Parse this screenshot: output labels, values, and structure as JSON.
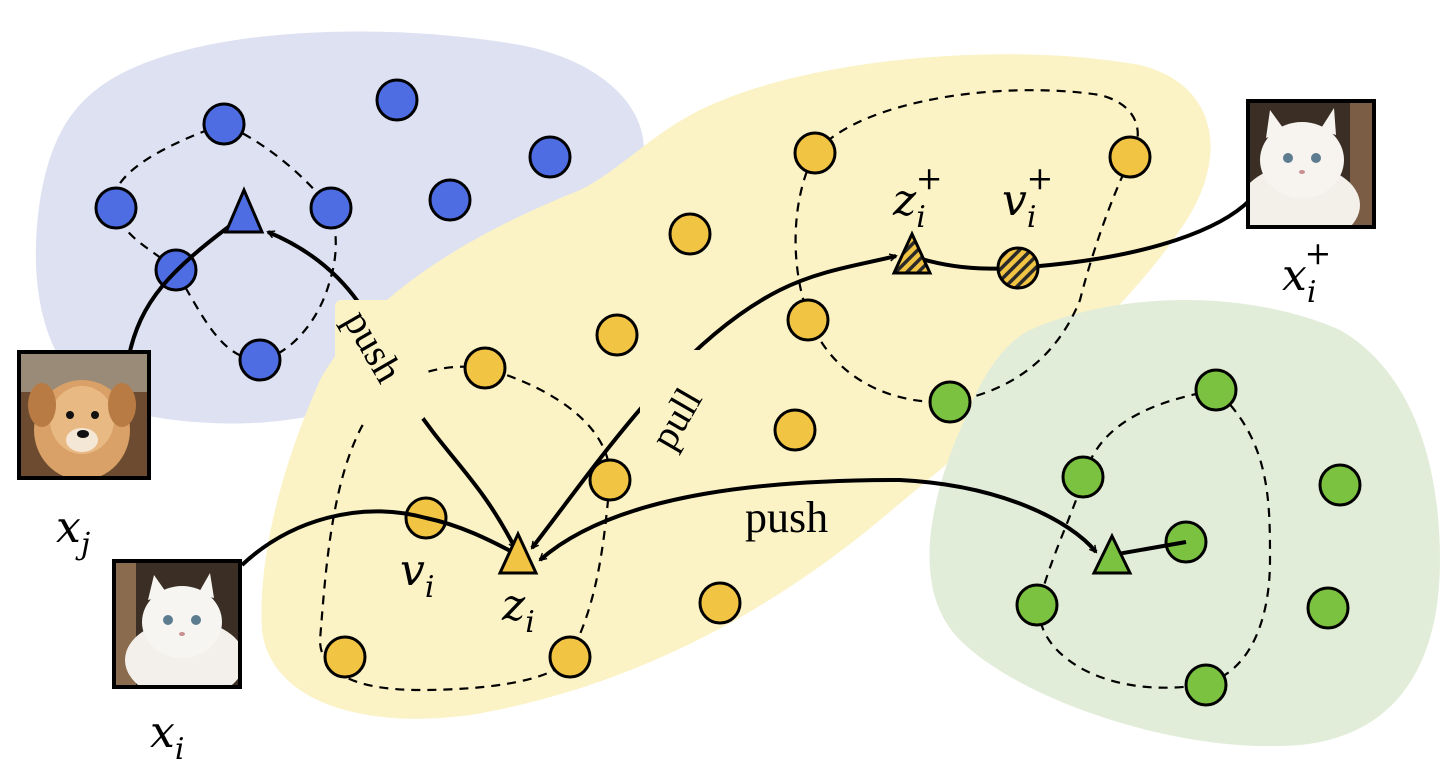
{
  "colors": {
    "blue_region": "#dde1f1",
    "yellow_region": "#fbf2c6",
    "green_region": "#e2edd9",
    "blue_point": "#4e6de3",
    "yellow_point": "#f2c443",
    "green_point": "#7cc241",
    "blue_triangle": "#4e6de3",
    "yellow_triangle": "#f2c443",
    "green_triangle": "#7cc241",
    "label_bg": "#fbf2c6"
  },
  "labels": {
    "x_j": "x",
    "x_j_sub": "j",
    "x_i": "x",
    "x_i_sub": "i",
    "x_i_plus": "x",
    "x_i_plus_sub": "i",
    "x_i_plus_sup": "+",
    "v_i": "v",
    "v_i_sub": "i",
    "z_i": "z",
    "z_i_sub": "i",
    "z_i_plus": "z",
    "z_i_plus_sub": "i",
    "z_i_plus_sup": "+",
    "v_i_plus": "v",
    "v_i_plus_sub": "i",
    "v_i_plus_sup": "+"
  },
  "arrows": {
    "push_left": "push",
    "pull": "pull",
    "push_right": "push"
  },
  "images": {
    "dog": "dog-photo-icon",
    "cat": "cat-photo-icon",
    "cat_plus": "cat-photo-icon"
  }
}
